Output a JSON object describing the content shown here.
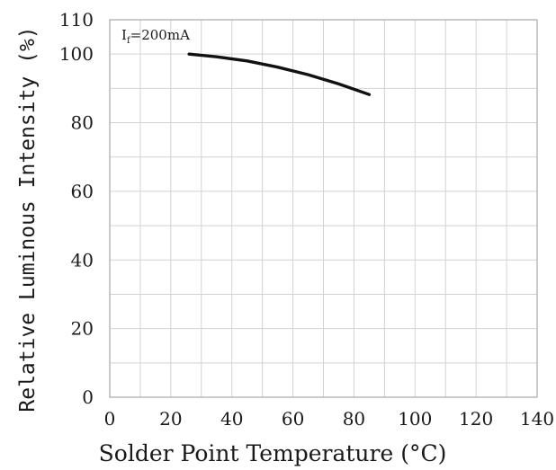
{
  "chart_data": {
    "type": "line",
    "title": "",
    "xlabel": "Solder Point Temperature (°C)",
    "ylabel": "Relative Luminous Intensity (%)",
    "xlim": [
      0,
      140
    ],
    "ylim": [
      0,
      110
    ],
    "xticks": [
      0,
      20,
      40,
      60,
      80,
      100,
      120,
      140
    ],
    "yticks": [
      0,
      20,
      40,
      60,
      80,
      100,
      110
    ],
    "xtick_labels": [
      "0",
      "20",
      "40",
      "60",
      "80",
      "100",
      "120",
      "140"
    ],
    "ytick_labels": [
      "0",
      "20",
      "40",
      "60",
      "80",
      "100",
      "110"
    ],
    "grid": true,
    "annotation": {
      "main": "I",
      "subscript": "f",
      "rest": "=200mA"
    },
    "series": [
      {
        "x": [
          26,
          35,
          45,
          55,
          65,
          75,
          85
        ],
        "y": [
          100,
          99.2,
          98.0,
          96.2,
          94.0,
          91.3,
          88.2
        ]
      }
    ],
    "colors": {
      "line": "#111111",
      "grid": "#d2d2d2",
      "frame": "#a8a8a8"
    }
  }
}
